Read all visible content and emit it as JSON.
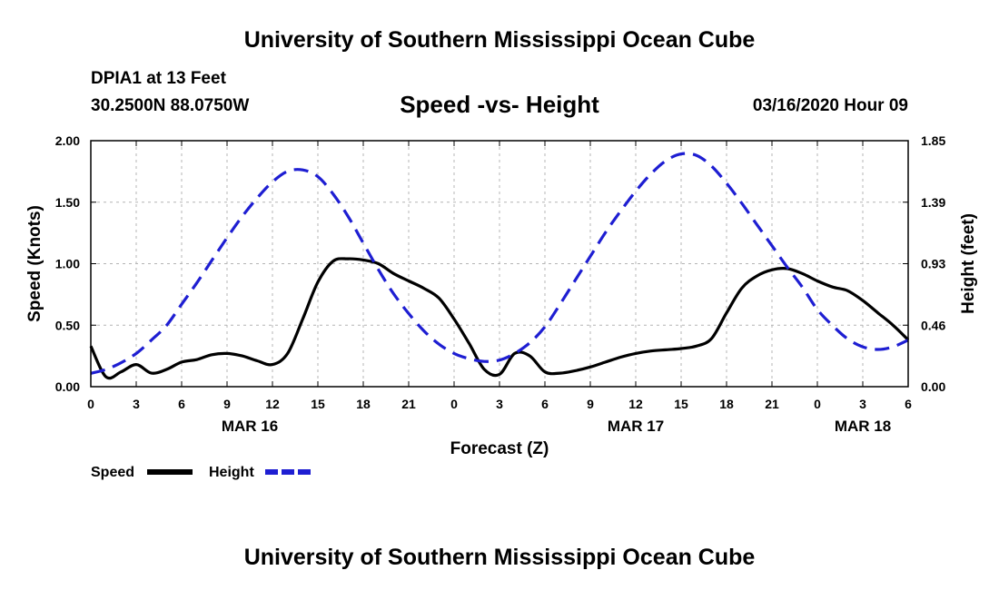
{
  "header": {
    "title": "University of Southern Mississippi Ocean Cube",
    "station": "DPIA1 at 13 Feet",
    "coordinates": "30.2500N 88.0750W",
    "chart_title": "Speed -vs- Height",
    "datetime": "03/16/2020 Hour 09"
  },
  "footer": {
    "title": "University of Southern Mississippi Ocean Cube"
  },
  "colors": {
    "speed": "#000000",
    "height": "#1e1ed2",
    "grid": "#b4b4b4"
  },
  "chart_data": {
    "type": "line",
    "xlabel": "Forecast (Z)",
    "ylabel_left": "Speed (Knots)",
    "ylabel_right": "Height (feet)",
    "x_range_hours": [
      0,
      54
    ],
    "x_tick_step_hours": 3,
    "x_tick_labels": [
      "0",
      "3",
      "6",
      "9",
      "12",
      "15",
      "18",
      "21",
      "0",
      "3",
      "6",
      "9",
      "12",
      "15",
      "18",
      "21",
      "0",
      "3",
      "6"
    ],
    "date_labels": [
      {
        "text": "MAR 16",
        "hour": 10.5
      },
      {
        "text": "MAR 17",
        "hour": 36
      },
      {
        "text": "MAR 18",
        "hour": 51
      }
    ],
    "y_left": {
      "min": 0,
      "max": 2.0,
      "ticks": [
        "0.00",
        "0.50",
        "1.00",
        "1.50",
        "2.00"
      ]
    },
    "y_right": {
      "min": 0,
      "max": 1.85,
      "ticks": [
        "0.00",
        "0.46",
        "0.93",
        "1.39",
        "1.85"
      ]
    },
    "legend": [
      {
        "label": "Speed",
        "style": "solid"
      },
      {
        "label": "Height",
        "style": "dashed"
      }
    ],
    "series": [
      {
        "name": "Speed",
        "axis": "left",
        "x": [
          0,
          1,
          2,
          3,
          4,
          5,
          6,
          7,
          8,
          9,
          10,
          11,
          12,
          13,
          14,
          15,
          16,
          17,
          18,
          19,
          20,
          21,
          22,
          23,
          24,
          25,
          26,
          27,
          28,
          29,
          30,
          31,
          32,
          33,
          34,
          35,
          36,
          37,
          38,
          39,
          40,
          41,
          42,
          43,
          44,
          45,
          46,
          47,
          48,
          49,
          50,
          51,
          52,
          53,
          54
        ],
        "values": [
          0.33,
          0.08,
          0.12,
          0.18,
          0.11,
          0.14,
          0.2,
          0.22,
          0.26,
          0.27,
          0.25,
          0.21,
          0.18,
          0.27,
          0.55,
          0.85,
          1.02,
          1.04,
          1.03,
          1.0,
          0.92,
          0.86,
          0.8,
          0.72,
          0.55,
          0.35,
          0.14,
          0.1,
          0.27,
          0.25,
          0.12,
          0.11,
          0.13,
          0.16,
          0.2,
          0.24,
          0.27,
          0.29,
          0.3,
          0.31,
          0.33,
          0.39,
          0.6,
          0.8,
          0.9,
          0.95,
          0.96,
          0.92,
          0.86,
          0.81,
          0.78,
          0.7,
          0.6,
          0.5,
          0.38
        ]
      },
      {
        "name": "Height",
        "axis": "right",
        "x": [
          0,
          1,
          2,
          3,
          4,
          5,
          6,
          7,
          8,
          9,
          10,
          11,
          12,
          13,
          14,
          15,
          16,
          17,
          18,
          19,
          20,
          21,
          22,
          23,
          24,
          25,
          26,
          27,
          28,
          29,
          30,
          31,
          32,
          33,
          34,
          35,
          36,
          37,
          38,
          39,
          40,
          41,
          42,
          43,
          44,
          45,
          46,
          47,
          48,
          49,
          50,
          51,
          52,
          53,
          54
        ],
        "values": [
          0.1,
          0.13,
          0.18,
          0.25,
          0.35,
          0.46,
          0.62,
          0.78,
          0.95,
          1.12,
          1.28,
          1.42,
          1.54,
          1.62,
          1.63,
          1.58,
          1.45,
          1.28,
          1.08,
          0.88,
          0.7,
          0.55,
          0.42,
          0.32,
          0.25,
          0.21,
          0.19,
          0.2,
          0.25,
          0.33,
          0.45,
          0.62,
          0.8,
          0.98,
          1.16,
          1.32,
          1.47,
          1.6,
          1.7,
          1.75,
          1.74,
          1.66,
          1.53,
          1.38,
          1.22,
          1.06,
          0.9,
          0.75,
          0.58,
          0.46,
          0.36,
          0.3,
          0.28,
          0.3,
          0.35
        ]
      }
    ]
  }
}
